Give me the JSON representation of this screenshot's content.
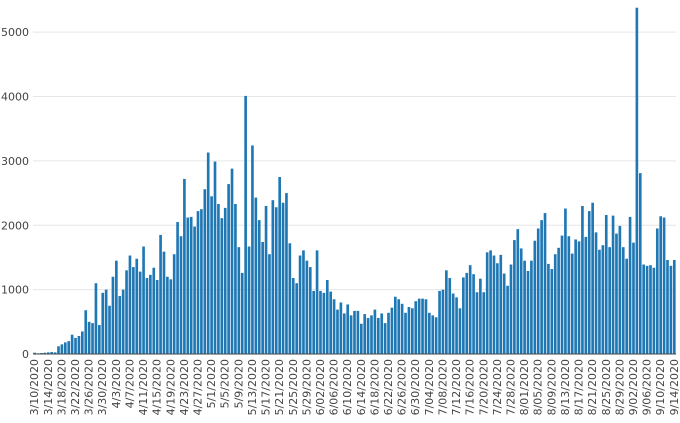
{
  "chart_data": {
    "type": "bar",
    "title": "",
    "xlabel": "",
    "ylabel": "",
    "ylim": [
      0,
      5500
    ],
    "yticks": [
      0,
      1000,
      2000,
      3000,
      4000,
      5000
    ],
    "ytick_labels": [
      "0",
      "1000",
      "2000",
      "3000",
      "4000",
      "5000"
    ],
    "grid": true,
    "bar_color": "#1f77b4",
    "start_date": "3/10/2020",
    "xtick_labels": [
      "3/10/2020",
      "3/14/2020",
      "3/18/2020",
      "3/22/2020",
      "3/26/2020",
      "3/30/2020",
      "4/3/2020",
      "4/7/2020",
      "4/11/2020",
      "4/15/2020",
      "4/19/2020",
      "4/23/2020",
      "4/27/2020",
      "5/1/2020",
      "5/5/2020",
      "5/9/2020",
      "5/13/2020",
      "5/17/2020",
      "5/21/2020",
      "5/25/2020",
      "5/29/2020",
      "6/02/2020",
      "6/06/2020",
      "6/10/2020",
      "6/14/2020",
      "6/18/2020",
      "6/22/2020",
      "6/26/2020",
      "6/30/2020",
      "7/04/2020",
      "7/08/2020",
      "7/12/2020",
      "7/16/2020",
      "7/20/2020",
      "7/24/2020",
      "7/28/2020",
      "8/01/2020",
      "8/05/2020",
      "8/09/2020",
      "8/13/2020",
      "8/17/2020",
      "8/21/2020",
      "8/25/2020",
      "8/29/2020",
      "9/02/2020",
      "9/06/2020",
      "9/10/2020",
      "9/14/2020"
    ],
    "values": [
      20,
      10,
      15,
      20,
      25,
      30,
      25,
      120,
      150,
      180,
      200,
      300,
      250,
      280,
      350,
      680,
      500,
      480,
      1100,
      450,
      950,
      1000,
      750,
      1200,
      1450,
      900,
      1000,
      1300,
      1530,
      1350,
      1480,
      1280,
      1670,
      1180,
      1230,
      1340,
      1150,
      1850,
      1590,
      1200,
      1160,
      1550,
      2050,
      1830,
      2720,
      2120,
      2130,
      1980,
      2220,
      2250,
      2560,
      3130,
      2450,
      2990,
      2330,
      2110,
      2270,
      2640,
      2880,
      2330,
      1660,
      1260,
      4010,
      1670,
      3240,
      2430,
      2080,
      1740,
      2300,
      1550,
      2390,
      2280,
      2750,
      2350,
      2500,
      1720,
      1180,
      1100,
      1530,
      1610,
      1450,
      1350,
      980,
      1610,
      980,
      950,
      1150,
      970,
      850,
      690,
      800,
      630,
      770,
      600,
      670,
      670,
      470,
      620,
      560,
      600,
      690,
      560,
      630,
      480,
      640,
      720,
      890,
      850,
      780,
      640,
      730,
      710,
      820,
      860,
      860,
      850,
      640,
      600,
      570,
      980,
      1000,
      1300,
      1180,
      940,
      880,
      710,
      1190,
      1260,
      1380,
      1240,
      960,
      1170,
      960,
      1580,
      1610,
      1530,
      1410,
      1540,
      1250,
      1060,
      1390,
      1770,
      1940,
      1640,
      1450,
      1290,
      1450,
      1760,
      1950,
      2080,
      2190,
      1400,
      1320,
      1550,
      1650,
      1840,
      2260,
      1830,
      1560,
      1780,
      1750,
      2300,
      1820,
      2220,
      2350,
      1890,
      1620,
      1690,
      2160,
      1660,
      2150,
      1870,
      1990,
      1660,
      1480,
      2130,
      1730,
      5380,
      2810,
      1390,
      1370,
      1380,
      1340,
      1950,
      2140,
      2120,
      1460,
      1370,
      1460
    ]
  }
}
